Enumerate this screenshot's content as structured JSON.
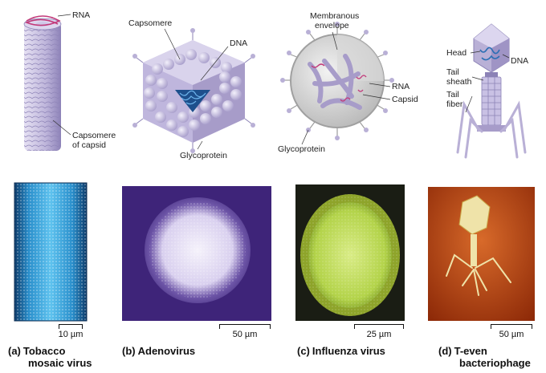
{
  "diagram": {
    "labels": {
      "tmv_rna": "RNA",
      "tmv_capsomere": "Capsomere",
      "tmv_of_capsid": "of capsid",
      "adeno_capsomere": "Capsomere",
      "adeno_dna": "DNA",
      "adeno_glyco": "Glycoprotein",
      "flu_membranous": "Membranous",
      "flu_envelope": "envelope",
      "flu_rna": "RNA",
      "flu_capsid": "Capsid",
      "flu_glyco": "Glycoprotein",
      "phage_head": "Head",
      "phage_dna": "DNA",
      "phage_tail1": "Tail",
      "phage_sheath": "sheath",
      "phage_tail2": "Tail",
      "phage_fiber": "fiber"
    }
  },
  "panels": [
    {
      "letter": "(a)",
      "name_line1": "Tobacco",
      "name_line2": "mosaic virus",
      "scale": "10 µm"
    },
    {
      "letter": "(b)",
      "name_line1": "Adenovirus",
      "name_line2": "",
      "scale": "50 µm"
    },
    {
      "letter": "(c)",
      "name_line1": "Influenza virus",
      "name_line2": "",
      "scale": "25 µm"
    },
    {
      "letter": "(d)",
      "name_line1": "T-even",
      "name_line2": "bacteriophage",
      "scale": "50 µm"
    }
  ],
  "colors": {
    "capsid": "#b9b0d6",
    "capsid_dark": "#8c82b6",
    "nucleic_acid": "#2a6fb5",
    "rna_magenta": "#c23a7a",
    "tmv_photo": "#2f8fc8",
    "adeno_photo": "#4c2f8a",
    "flu_photo": "#b6d641",
    "phage_photo": "#c24a10"
  }
}
